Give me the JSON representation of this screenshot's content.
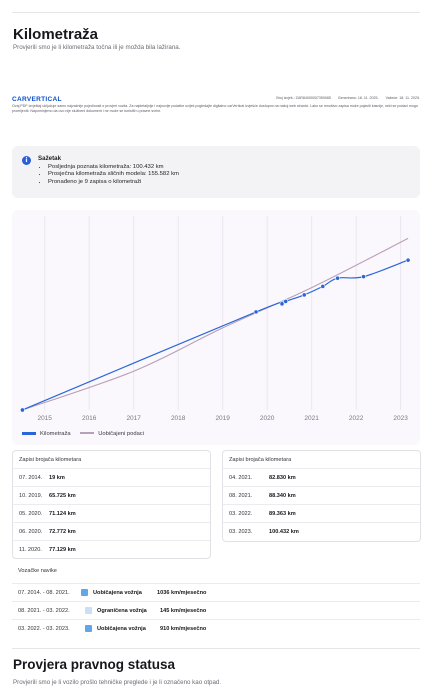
{
  "header": {
    "title": "Kilometraža",
    "subtitle": "Provjerili smo je li kilometraža točna ili je možda bila lažirana."
  },
  "carvertical": {
    "logo": "CARVERTICAL",
    "report_no": "Broj izvješ.: ZAR84000007359085",
    "generated": "Generirano: 18. 11. 2025.",
    "valid": "Važeće: 18. 11. 2025.",
    "note": "Ovaj PDF izvještaj uključuje samo najvažnije pojedinosti o provjeri vozila. Za najdetaljnije i najnovije podatke uvijek pogledajte digitalno carVertical izvješće dostupno na našoj web stranici. Lako se mnoštvo zapisa može pojaviti kasnije, neki se podaci mogu promijeniti. Napominjemo da ovo nije službeni dokument i ne može se koristiti u pravne svrhe."
  },
  "summary": {
    "icon": "info-icon",
    "title": "Sažetak",
    "items": [
      "Posljednja poznata kilometraža: 100.432 km",
      "Prosječna kilometraža sličnih modela: 155.582 km",
      "Pronađeno je 9 zapisa o kilometraži"
    ]
  },
  "chart_data": {
    "type": "line",
    "x_ticks": [
      "2015",
      "2016",
      "2017",
      "2018",
      "2019",
      "2020",
      "2021",
      "2022",
      "2023"
    ],
    "xlim": [
      2014.4,
      2023.3
    ],
    "ylim": [
      0,
      130000
    ],
    "grid": "vertical",
    "legend_position": "bottom-left",
    "series": [
      {
        "name": "Kilometraža",
        "color": "#2a66d9",
        "points": [
          {
            "date": "07. 2014.",
            "km": 19
          },
          {
            "date": "10. 2019.",
            "km": 65725
          },
          {
            "date": "05. 2020.",
            "km": 71124
          },
          {
            "date": "06. 2020.",
            "km": 72772
          },
          {
            "date": "11. 2020.",
            "km": 77129
          },
          {
            "date": "04. 2021.",
            "km": 82830
          },
          {
            "date": "08. 2021.",
            "km": 88340
          },
          {
            "date": "03. 2022.",
            "km": 89363
          },
          {
            "date": "03. 2023.",
            "km": 100432
          }
        ]
      },
      {
        "name": "Uobičajeni podaci",
        "color": "#b89fb8",
        "points": [
          {
            "date": "07. 2014.",
            "km": 0
          },
          {
            "date": "01. 2017.",
            "km": 26000
          },
          {
            "date": "01. 2019.",
            "km": 55000
          },
          {
            "date": "01. 2021.",
            "km": 82000
          },
          {
            "date": "03. 2023.",
            "km": 115000
          }
        ]
      }
    ]
  },
  "records": {
    "title_left": "Zapisi brojača kilometara",
    "title_right": "Zapisi brojača kilometara",
    "left": [
      {
        "date": "07. 2014.",
        "value": "19 km"
      },
      {
        "date": "10. 2019.",
        "value": "65.725 km"
      },
      {
        "date": "05. 2020.",
        "value": "71.124 km"
      },
      {
        "date": "06. 2020.",
        "value": "72.772 km"
      },
      {
        "date": "11. 2020.",
        "value": "77.129 km"
      }
    ],
    "right": [
      {
        "date": "04. 2021.",
        "value": "82.830 km"
      },
      {
        "date": "08. 2021.",
        "value": "88.340 km"
      },
      {
        "date": "03. 2022.",
        "value": "89.363 km"
      },
      {
        "date": "03. 2023.",
        "value": "100.432 km"
      }
    ]
  },
  "driving": {
    "title": "Vozačke navike",
    "rows": [
      {
        "period": "07. 2014. - 08. 2021.",
        "type": "Uobičajena vožnja",
        "rate": "1036 km/mjesečno",
        "color": "#62a6ea"
      },
      {
        "period": "08. 2021. - 03. 2022.",
        "type": "Ograničena vožnja",
        "rate": "145 km/mjesečno",
        "color": "#c9e0f6"
      },
      {
        "period": "03. 2022. - 03. 2023.",
        "type": "Uobičajena vožnja",
        "rate": "910 km/mjesečno",
        "color": "#62a6ea"
      }
    ]
  },
  "legal": {
    "title": "Provjera pravnog statusa",
    "subtitle": "Provjerili smo je li vozilo prošlo tehničke preglede i je li označeno kao otpad."
  }
}
